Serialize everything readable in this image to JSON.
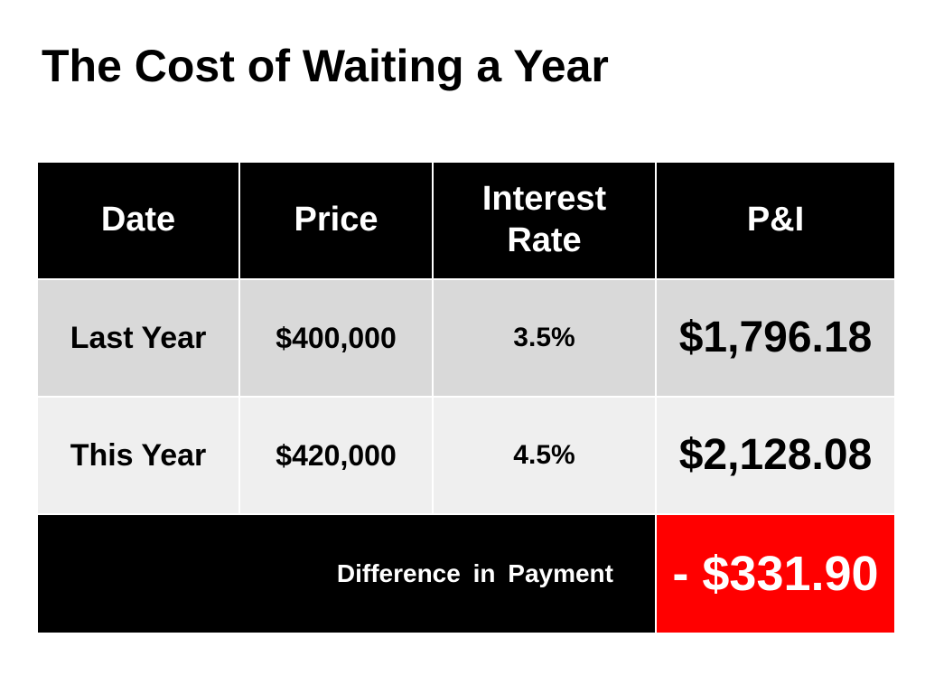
{
  "title": "The Cost of Waiting a Year",
  "table": {
    "header": [
      "Date",
      "Price",
      "Interest Rate",
      "P&I"
    ],
    "rows": [
      [
        "Last Year",
        "$400,000",
        "3.5%",
        "$1,796.18"
      ],
      [
        "This Year",
        "$420,000",
        "4.5%",
        "$2,128.08"
      ]
    ],
    "footer": {
      "label": "Difference in Payment",
      "value": "- $331.90"
    }
  }
}
